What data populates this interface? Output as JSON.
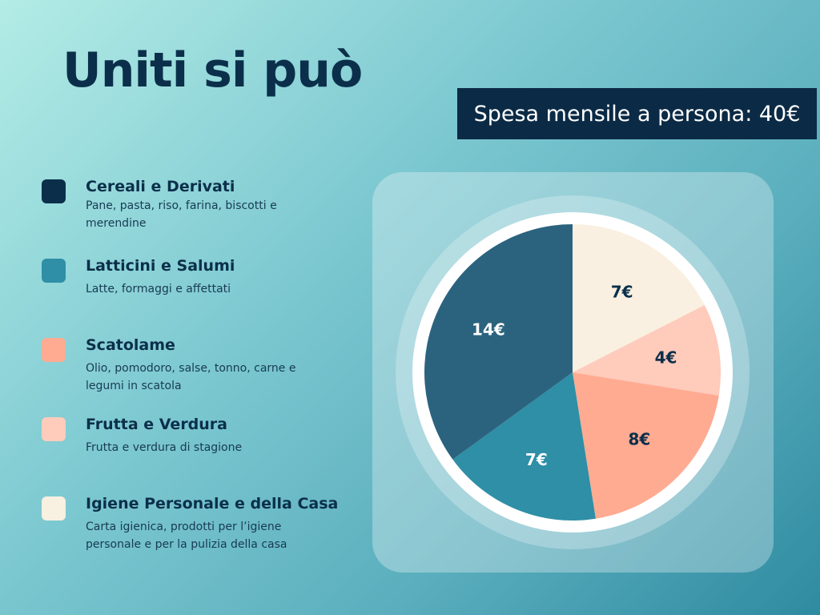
{
  "title": "Uniti si può",
  "badge": "Spesa mensile a persona: 40€",
  "legend": [
    {
      "label": "Cereali e Derivati",
      "desc": "Pane, pasta, riso, farina, biscotti e merendine",
      "color": "#0b2f4a"
    },
    {
      "label": "Latticini e Salumi",
      "desc": "Latte, formaggi e affettati",
      "color": "#2e8fa6"
    },
    {
      "label": "Scatolame",
      "desc": "Olio, pomodoro, salse, tonno, carne e legumi in scatola",
      "color": "#ffab92"
    },
    {
      "label": "Frutta e Verdura",
      "desc": "Frutta e verdura di stagione",
      "color": "#ffcbbb"
    },
    {
      "label": "Igiene Personale e della Casa",
      "desc": "Carta igienica, prodotti per l’igiene personale e per la pulizia della casa",
      "color": "#f8f0e0"
    }
  ],
  "chart_data": {
    "type": "pie",
    "title": "",
    "total": 40,
    "unit": "€",
    "slices": [
      {
        "label": "Igiene Personale e della Casa",
        "value": 7,
        "display": "7€",
        "color": "#f9f0e1",
        "text_color": "#0b2f4a"
      },
      {
        "label": "Frutta e Verdura",
        "value": 4,
        "display": "4€",
        "color": "#ffcbbb",
        "text_color": "#0b2f4a"
      },
      {
        "label": "Scatolame",
        "value": 8,
        "display": "8€",
        "color": "#ffab92",
        "text_color": "#0b2f4a"
      },
      {
        "label": "Latticini e Salumi",
        "value": 7,
        "display": "7€",
        "color": "#2e8fa6",
        "text_color": "#ffffff"
      },
      {
        "label": "Cereali e Derivati",
        "value": 14,
        "display": "14€",
        "color": "#2b637f",
        "text_color": "#ffffff"
      }
    ]
  }
}
